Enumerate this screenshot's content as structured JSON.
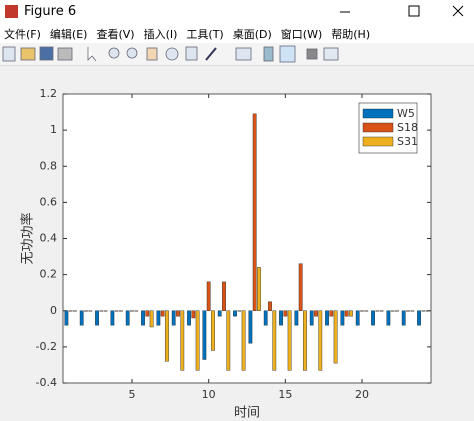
{
  "window": {
    "title": "Figure 6",
    "menu": [
      "文件(F)",
      "编辑(E)",
      "查看(V)",
      "插入(I)",
      "工具(T)",
      "桌面(D)",
      "窗口(W)",
      "帮助(H)"
    ]
  },
  "chart_data": {
    "type": "bar",
    "xlabel": "时间",
    "ylabel": "无功功率",
    "x": [
      1,
      2,
      3,
      4,
      5,
      6,
      7,
      8,
      9,
      10,
      11,
      12,
      13,
      14,
      15,
      16,
      17,
      18,
      19,
      20,
      21,
      22,
      23,
      24
    ],
    "series": [
      {
        "name": "W5",
        "color": "#0072bd",
        "values": [
          -0.08,
          -0.08,
          -0.08,
          -0.08,
          -0.08,
          -0.08,
          -0.08,
          -0.08,
          -0.08,
          -0.27,
          -0.03,
          -0.03,
          -0.18,
          -0.08,
          -0.08,
          -0.08,
          -0.08,
          -0.08,
          -0.08,
          -0.08,
          -0.08,
          -0.08,
          -0.08,
          -0.08
        ]
      },
      {
        "name": "S18",
        "color": "#d95319",
        "values": [
          0,
          0,
          0,
          0,
          0,
          -0.03,
          -0.03,
          -0.03,
          -0.04,
          0.16,
          0.16,
          0,
          1.09,
          0.05,
          -0.03,
          0.26,
          -0.03,
          -0.03,
          -0.03,
          0,
          0,
          0,
          0,
          0
        ]
      },
      {
        "name": "S31",
        "color": "#edb120",
        "values": [
          0,
          0,
          0,
          0,
          0,
          -0.09,
          -0.28,
          -0.33,
          -0.33,
          -0.22,
          -0.33,
          -0.33,
          0.24,
          -0.33,
          -0.33,
          -0.33,
          -0.33,
          -0.29,
          -0.03,
          0,
          0,
          0,
          0,
          0
        ]
      }
    ],
    "xlim": [
      0.5,
      24.5
    ],
    "xticks": [
      5,
      10,
      15,
      20
    ],
    "ylim": [
      -0.4,
      1.2
    ],
    "yticks": [
      -0.4,
      -0.2,
      0,
      0.2,
      0.4,
      0.6,
      0.8,
      1,
      1.2
    ],
    "legend": "upper right"
  }
}
